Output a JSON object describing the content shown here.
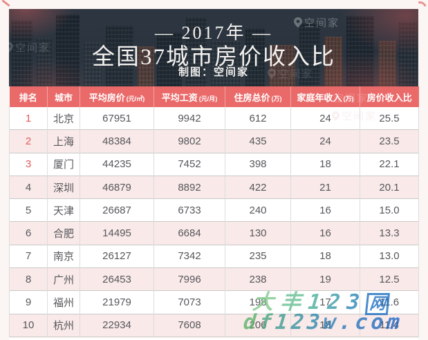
{
  "header": {
    "year_line": "— 2017年 —",
    "title": "全国37城市房价收入比",
    "credit": "制图：空间家"
  },
  "brand_watermark": {
    "text": "空间家"
  },
  "colors": {
    "header_band": "#ea6a6a",
    "row_pink": "#f9e9e9",
    "rank_highlight": "#e25a5a",
    "body_text": "#56575b"
  },
  "chart_data": {
    "type": "table",
    "title": "全国37城市房价收入比",
    "subtitle": "— 2017年 —",
    "credit": "制图：空间家",
    "columns": [
      {
        "label": "排名",
        "unit": ""
      },
      {
        "label": "城市",
        "unit": ""
      },
      {
        "label": "平均房价",
        "unit": "(元/㎡)"
      },
      {
        "label": "平均工资",
        "unit": "(元/月)"
      },
      {
        "label": "住房总价",
        "unit": "(万)"
      },
      {
        "label": "家庭年收入",
        "unit": "(万)"
      },
      {
        "label": "房价收入比",
        "unit": ""
      }
    ],
    "rows": [
      [
        "1",
        "北京",
        "67951",
        "9942",
        "612",
        "24",
        "25.5"
      ],
      [
        "2",
        "上海",
        "48384",
        "9802",
        "435",
        "24",
        "23.5"
      ],
      [
        "3",
        "厦门",
        "44235",
        "7452",
        "398",
        "18",
        "22.1"
      ],
      [
        "4",
        "深圳",
        "46879",
        "8892",
        "422",
        "21",
        "20.1"
      ],
      [
        "5",
        "天津",
        "26687",
        "6733",
        "240",
        "16",
        "15.0"
      ],
      [
        "6",
        "合肥",
        "14495",
        "6684",
        "130",
        "16",
        "13.3"
      ],
      [
        "7",
        "南京",
        "26127",
        "7342",
        "235",
        "18",
        "13.0"
      ],
      [
        "8",
        "广州",
        "26453",
        "7996",
        "238",
        "19",
        "12.5"
      ],
      [
        "9",
        "福州",
        "21979",
        "7073",
        "198",
        "17",
        "11.6"
      ],
      [
        "10",
        "杭州",
        "22934",
        "7608",
        "206",
        "18",
        "11.4"
      ]
    ]
  },
  "site_watermark": {
    "line1": [
      {
        "ch": "大",
        "color": "#7fc98a"
      },
      {
        "ch": "丰",
        "color": "#65bf92"
      },
      {
        "ch": "1",
        "color": "#4aae9b"
      },
      {
        "ch": "2",
        "color": "#3a9aa8"
      },
      {
        "ch": "3",
        "color": "#2b86b5"
      },
      {
        "ch": "网",
        "color": "#1e6fc2",
        "boxed": true
      }
    ],
    "line2": [
      {
        "ch": "d",
        "color": "#5bb36a"
      },
      {
        "ch": "f",
        "color": "#4aa782"
      },
      {
        "ch": "1",
        "color": "#3f9c92"
      },
      {
        "ch": "2",
        "color": "#35929f"
      },
      {
        "ch": "3",
        "color": "#2d89ab"
      },
      {
        "ch": "w",
        "color": "#2e7fb5"
      },
      {
        "ch": ".",
        "color": "#2a79ba"
      },
      {
        "ch": "c",
        "color": "#2673be"
      },
      {
        "ch": "o",
        "color": "#226dc2"
      },
      {
        "ch": "m",
        "color": "#1f68c6"
      }
    ]
  }
}
